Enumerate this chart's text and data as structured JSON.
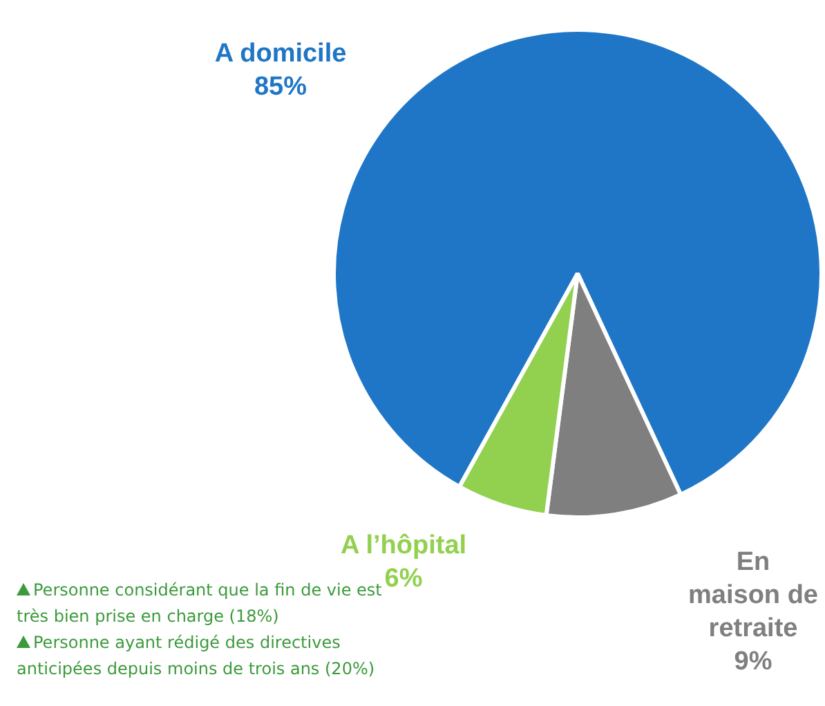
{
  "chart_data": {
    "type": "pie",
    "categories": [
      "A domicile",
      "En maison de retraite",
      "A l’hôpital"
    ],
    "values": [
      85,
      9,
      6
    ],
    "value_labels": [
      "85%",
      "9%",
      "6%"
    ],
    "colors": [
      "#1f76c6",
      "#7f7f7f",
      "#92d050"
    ],
    "annotations": [
      "Personne considérant que la fin de vie est très bien prise en charge (18%)",
      "Personne ayant rédigé des directives anticipées depuis moins de trois ans (20%)"
    ],
    "legend": false
  }
}
